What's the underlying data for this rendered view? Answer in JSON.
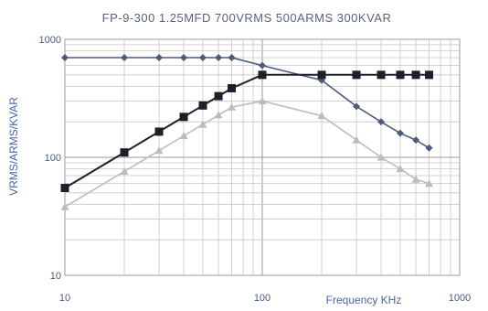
{
  "chart_data": {
    "type": "line",
    "title": "FP-9-300 1.25MFD 700VRMS 500ARMS 300KVAR",
    "xlabel": "Frequency KHz",
    "ylabel": "VRMS/ARMS/KVAR",
    "x_scale": "log",
    "y_scale": "log",
    "xlim": [
      10,
      1000
    ],
    "ylim": [
      10,
      1000
    ],
    "x_ticks": [
      "10",
      "100",
      "1000"
    ],
    "y_ticks": [
      "10",
      "100",
      "1000"
    ],
    "grid": true,
    "legend": "none",
    "series": [
      {
        "marker": "diamond",
        "color": "#4d5a7d",
        "x": [
          10,
          20,
          30,
          40,
          50,
          60,
          70,
          100,
          200,
          300,
          400,
          500,
          600,
          700
        ],
        "y": [
          700,
          700,
          700,
          700,
          700,
          700,
          700,
          600,
          450,
          270,
          200,
          160,
          140,
          120
        ]
      },
      {
        "marker": "square",
        "color": "#1f1f2a",
        "x": [
          10,
          20,
          30,
          40,
          50,
          60,
          70,
          100,
          200,
          300,
          400,
          500,
          600,
          700
        ],
        "y": [
          55,
          110,
          165,
          220,
          275,
          330,
          385,
          500,
          500,
          500,
          500,
          500,
          500,
          500
        ]
      },
      {
        "marker": "triangle",
        "color": "#b9bcc4",
        "x": [
          10,
          20,
          30,
          40,
          50,
          60,
          70,
          100,
          200,
          300,
          400,
          500,
          600,
          700
        ],
        "y": [
          38,
          76,
          114,
          152,
          190,
          228,
          266,
          300,
          225,
          140,
          100,
          80,
          65,
          60
        ]
      }
    ]
  }
}
